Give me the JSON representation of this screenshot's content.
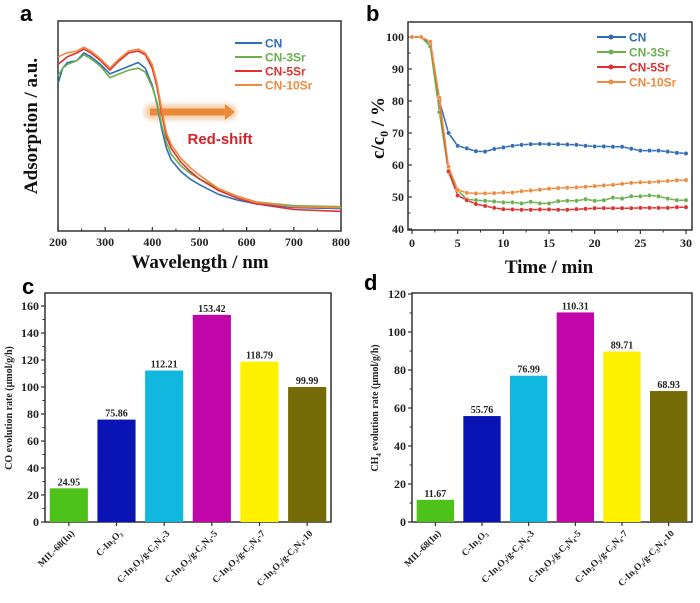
{
  "chart_data": [
    {
      "panel": "a",
      "type": "line",
      "title": "",
      "xlabel": "Wavelength / nm",
      "ylabel": "Adsorption / a.u.",
      "xlim": [
        200,
        800
      ],
      "ylim": [
        0,
        1
      ],
      "xticks": [
        200,
        300,
        400,
        500,
        600,
        700,
        800
      ],
      "yticks_shown": false,
      "legend_position": "top-right",
      "annotation": {
        "text": "Red-shift",
        "arrow": "right",
        "arrow_from_x": 395,
        "arrow_to_x": 575
      },
      "series": [
        {
          "name": "CN",
          "color": "#2f6db5",
          "x": [
            200,
            210,
            220,
            240,
            255,
            270,
            290,
            310,
            330,
            350,
            370,
            385,
            400,
            410,
            420,
            430,
            440,
            460,
            480,
            500,
            540,
            580,
            620,
            700,
            800
          ],
          "y": [
            0.72,
            0.8,
            0.83,
            0.84,
            0.88,
            0.86,
            0.82,
            0.77,
            0.79,
            0.81,
            0.83,
            0.8,
            0.71,
            0.61,
            0.48,
            0.38,
            0.32,
            0.26,
            0.22,
            0.19,
            0.14,
            0.11,
            0.09,
            0.07,
            0.065
          ]
        },
        {
          "name": "CN-3Sr",
          "color": "#6ab04c",
          "x": [
            200,
            210,
            220,
            240,
            255,
            270,
            290,
            310,
            330,
            350,
            370,
            385,
            400,
            410,
            420,
            430,
            440,
            460,
            480,
            500,
            540,
            580,
            620,
            700,
            800
          ],
          "y": [
            0.76,
            0.8,
            0.82,
            0.84,
            0.87,
            0.85,
            0.81,
            0.75,
            0.77,
            0.79,
            0.8,
            0.78,
            0.7,
            0.62,
            0.5,
            0.41,
            0.35,
            0.29,
            0.25,
            0.22,
            0.17,
            0.13,
            0.1,
            0.08,
            0.075
          ]
        },
        {
          "name": "CN-5Sr",
          "color": "#e0302f",
          "x": [
            200,
            210,
            220,
            240,
            255,
            270,
            290,
            310,
            330,
            350,
            370,
            385,
            400,
            410,
            420,
            430,
            440,
            460,
            480,
            500,
            540,
            580,
            620,
            700,
            800
          ],
          "y": [
            0.82,
            0.84,
            0.86,
            0.88,
            0.9,
            0.88,
            0.84,
            0.79,
            0.84,
            0.88,
            0.89,
            0.87,
            0.8,
            0.7,
            0.56,
            0.44,
            0.38,
            0.31,
            0.26,
            0.22,
            0.16,
            0.12,
            0.09,
            0.06,
            0.05
          ]
        },
        {
          "name": "CN-10Sr",
          "color": "#f08a3c",
          "x": [
            200,
            210,
            220,
            240,
            255,
            270,
            290,
            310,
            330,
            350,
            370,
            385,
            400,
            410,
            420,
            430,
            440,
            460,
            480,
            500,
            540,
            580,
            620,
            700,
            800
          ],
          "y": [
            0.86,
            0.87,
            0.88,
            0.89,
            0.91,
            0.89,
            0.85,
            0.8,
            0.85,
            0.89,
            0.9,
            0.88,
            0.82,
            0.72,
            0.58,
            0.46,
            0.4,
            0.33,
            0.28,
            0.24,
            0.17,
            0.13,
            0.1,
            0.075,
            0.07
          ]
        }
      ]
    },
    {
      "panel": "b",
      "type": "line",
      "title": "",
      "xlabel": "Time / min",
      "ylabel": "c/c0 / %",
      "xlim": [
        0,
        30
      ],
      "ylim": [
        40,
        100
      ],
      "xticks": [
        0,
        5,
        10,
        15,
        20,
        25,
        30
      ],
      "yticks": [
        40,
        50,
        60,
        70,
        80,
        90,
        100
      ],
      "legend_position": "top-right",
      "markers": true,
      "series": [
        {
          "name": "CN",
          "color": "#2f6db5",
          "x": [
            0,
            1,
            2,
            3,
            4,
            5,
            6,
            7,
            8,
            9,
            10,
            11,
            12,
            13,
            14,
            15,
            16,
            17,
            18,
            19,
            20,
            21,
            22,
            23,
            24,
            25,
            26,
            27,
            28,
            29,
            30
          ],
          "y": [
            100,
            100,
            98,
            80,
            70,
            66,
            65.2,
            64.3,
            64.2,
            65,
            65.5,
            66,
            66.3,
            66.5,
            66.6,
            66.5,
            66.5,
            66.4,
            66.3,
            66,
            65.8,
            65.8,
            65.7,
            65.7,
            65.1,
            64.5,
            64.5,
            64.5,
            64.2,
            63.8,
            63.6
          ]
        },
        {
          "name": "CN-3Sr",
          "color": "#6ab04c",
          "x": [
            0,
            1,
            2,
            3,
            4,
            5,
            6,
            7,
            8,
            9,
            10,
            11,
            12,
            13,
            14,
            15,
            16,
            17,
            18,
            19,
            20,
            21,
            22,
            23,
            24,
            25,
            26,
            27,
            28,
            29,
            30
          ],
          "y": [
            100,
            100,
            97,
            76.5,
            58,
            52,
            49.3,
            49,
            48.8,
            48.6,
            48.3,
            48.3,
            48,
            48.5,
            48,
            48,
            48.7,
            48.8,
            48.8,
            49.3,
            48.8,
            49,
            49.8,
            49.5,
            50.2,
            50.2,
            50.5,
            50.2,
            49.5,
            49,
            49
          ]
        },
        {
          "name": "CN-5Sr",
          "color": "#e0302f",
          "x": [
            0,
            1,
            2,
            3,
            4,
            5,
            6,
            7,
            8,
            9,
            10,
            11,
            12,
            13,
            14,
            15,
            16,
            17,
            18,
            19,
            20,
            21,
            22,
            23,
            24,
            25,
            26,
            27,
            28,
            29,
            30
          ],
          "y": [
            100,
            100,
            98.5,
            80.5,
            58,
            50.5,
            49,
            47.8,
            47.2,
            46.6,
            46.2,
            46.1,
            46,
            46,
            46.1,
            46.1,
            46,
            46,
            46.2,
            46.3,
            46.5,
            46.5,
            46.5,
            46.5,
            46.5,
            46.6,
            46.6,
            46.6,
            46.6,
            46.8,
            46.8
          ]
        },
        {
          "name": "CN-10Sr",
          "color": "#f08a3c",
          "x": [
            0,
            1,
            2,
            3,
            4,
            5,
            6,
            7,
            8,
            9,
            10,
            11,
            12,
            13,
            14,
            15,
            16,
            17,
            18,
            19,
            20,
            21,
            22,
            23,
            24,
            25,
            26,
            27,
            28,
            29,
            30
          ],
          "y": [
            100,
            100,
            98.5,
            81,
            59.5,
            52.2,
            51.3,
            51.1,
            51.1,
            51.2,
            51.4,
            51.4,
            51.8,
            52,
            52.3,
            52.6,
            52.8,
            52.9,
            53,
            53.2,
            53.4,
            53.6,
            53.8,
            54.1,
            54.4,
            54.6,
            54.6,
            54.8,
            55,
            55.2,
            55.3
          ]
        }
      ]
    },
    {
      "panel": "c",
      "type": "bar",
      "title": "",
      "xlabel": "",
      "ylabel": "CO evolution rate (μmol/g/h)",
      "ylim": [
        0,
        165
      ],
      "yticks": [
        0,
        20,
        40,
        60,
        80,
        100,
        120,
        140,
        160
      ],
      "categories": [
        "MIL-68(In)",
        "C-In2O3",
        "C-In2O3/g-C3N4-3",
        "C-In2O3/g-C3N4-5",
        "C-In2O3/g-C3N4-7",
        "C-In2O3/g-C3N4-10"
      ],
      "category_labels": [
        "MIL-68(In)",
        "C-In₂O₃",
        "C-In₂O₃/g-C₃N₄-3",
        "C-In₂O₃/g-C₃N₄-5",
        "C-In₂O₃/g-C₃N₄-7",
        "C-In₂O₃/g-C₃N₄-10"
      ],
      "values": [
        24.95,
        75.86,
        112.21,
        153.42,
        118.79,
        99.99
      ],
      "value_labels": [
        "24.95",
        "75.86",
        "112.21",
        "153.42",
        "118.79",
        "99.99"
      ],
      "colors": [
        "#4cc21a",
        "#0a14b4",
        "#10b8e0",
        "#c006a8",
        "#fff000",
        "#756c08"
      ]
    },
    {
      "panel": "d",
      "type": "bar",
      "title": "",
      "xlabel": "",
      "ylabel": "CH4 evolution rate (μmol/g/h)",
      "ylim": [
        0,
        120
      ],
      "yticks": [
        0,
        20,
        40,
        60,
        80,
        100,
        120
      ],
      "categories": [
        "MIL-68(In)",
        "C-In2O3",
        "C-In2O3/g-C3N4-3",
        "C-In2O3/g-C3N4-5",
        "C-In2O3/g-C3N4-7",
        "C-In2O3/g-C3N4-10"
      ],
      "category_labels": [
        "MIL-68(In)",
        "C-In₂O₃",
        "C-In₂O₃/g-C₃N₄-3",
        "C-In₂O₃/g-C₃N₄-5",
        "C-In₂O₃/g-C₃N₄-7",
        "C-In₂O₃/g-C₃N₄-10"
      ],
      "values": [
        11.67,
        55.76,
        76.99,
        110.31,
        89.71,
        68.93
      ],
      "value_labels": [
        "11.67",
        "55.76",
        "76.99",
        "110.31",
        "89.71",
        "68.93"
      ],
      "colors": [
        "#4cc21a",
        "#0a14b4",
        "#10b8e0",
        "#c006a8",
        "#fff000",
        "#756c08"
      ]
    }
  ],
  "panels": {
    "a": {
      "letter": "a",
      "ylabel": "Adsorption / a.u.",
      "xlabel": "Wavelength / nm",
      "annotation": "Red-shift"
    },
    "b": {
      "letter": "b",
      "ylabel_main": "c/c",
      "ylabel_sub": "0",
      "ylabel_tail": " / %",
      "xlabel": "Time / min"
    },
    "c": {
      "letter": "c",
      "ylabel": "CO evolution rate (μmol/g/h)"
    },
    "d": {
      "letter": "d",
      "ylabel_main": "CH",
      "ylabel_sub": "4",
      "ylabel_tail": " evolution rate (μmol/g/h)"
    }
  }
}
